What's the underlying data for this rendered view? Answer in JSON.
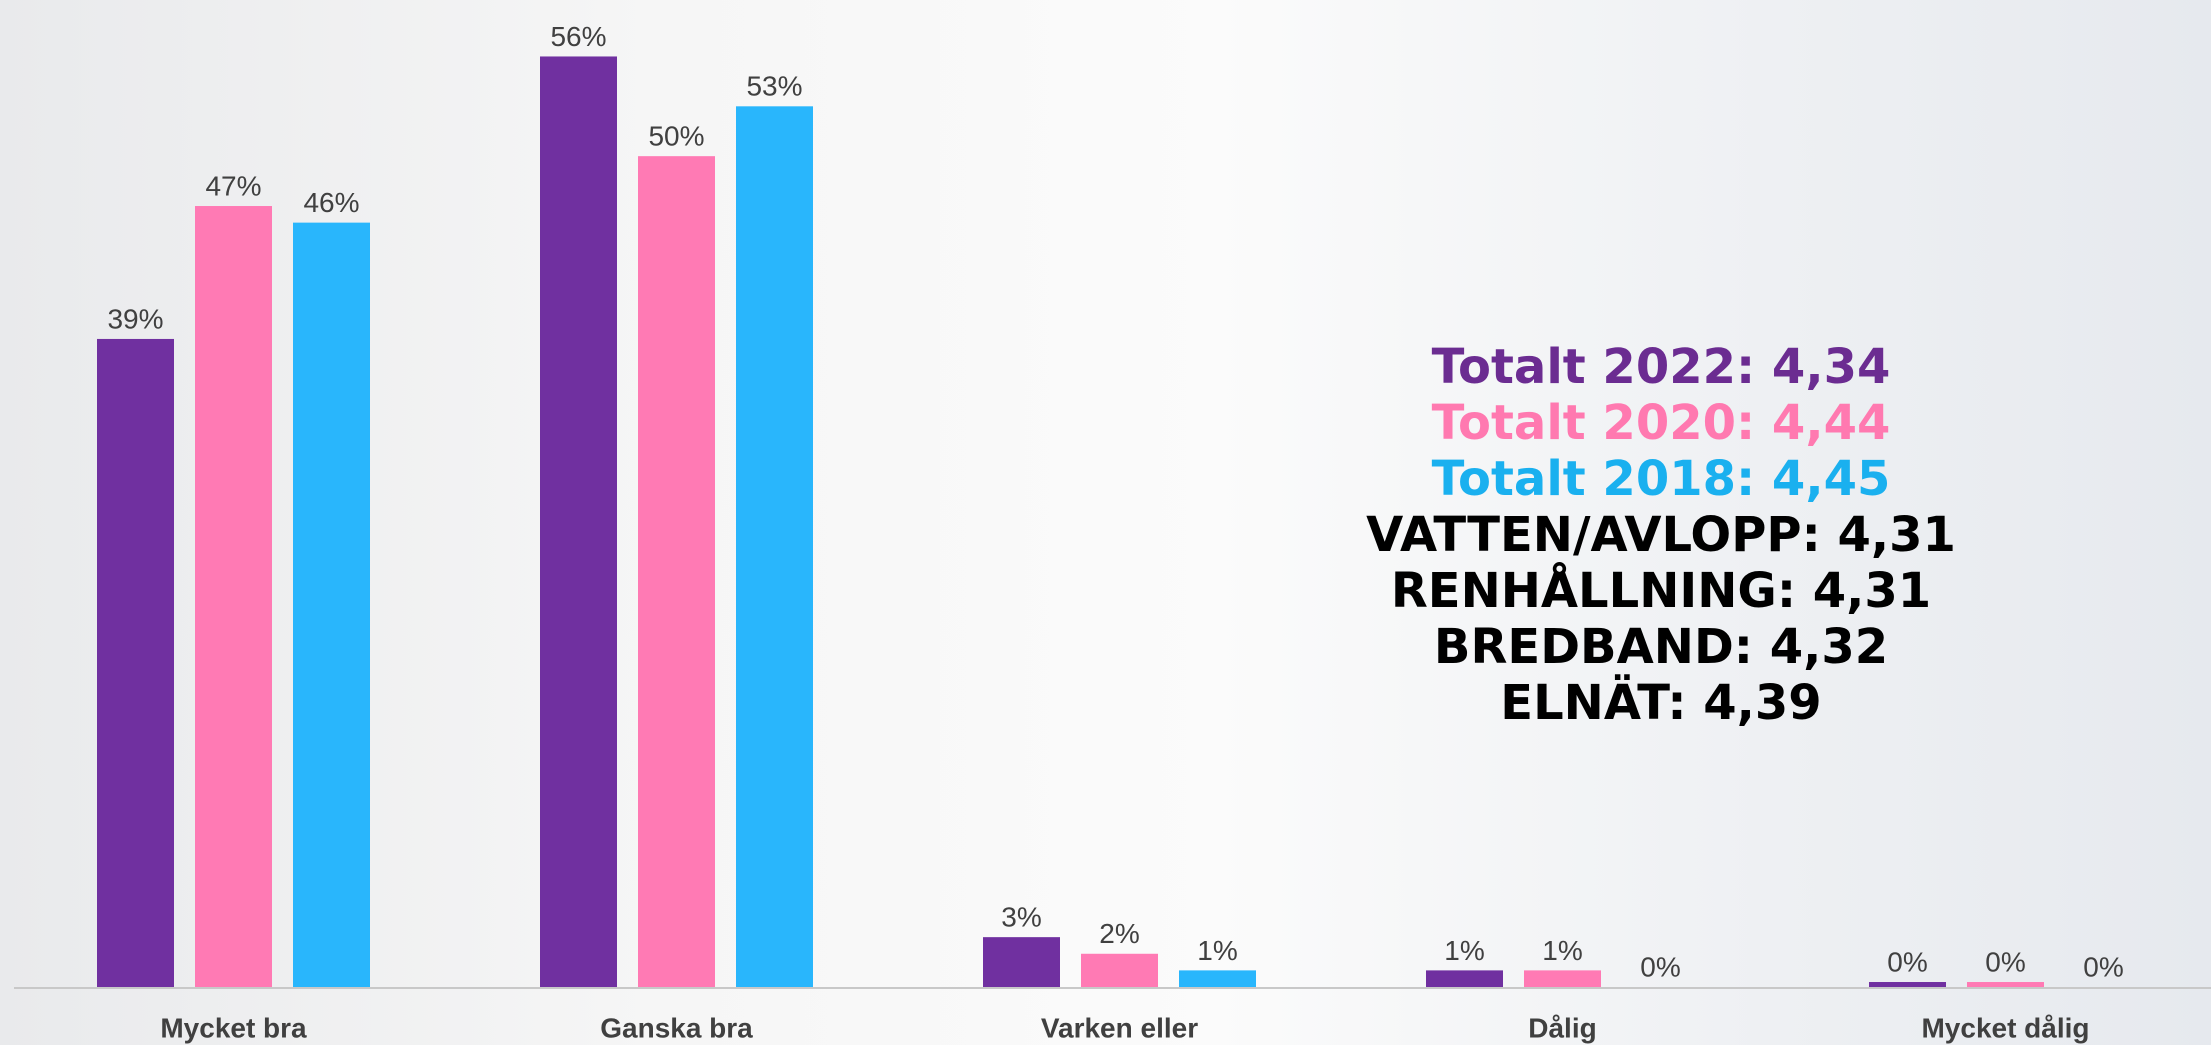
{
  "chart_data": {
    "type": "bar",
    "categories": [
      "Mycket bra",
      "Ganska bra",
      "Varken eller",
      "Dålig",
      "Mycket dålig"
    ],
    "series": [
      {
        "color": "#7030a0",
        "values": [
          39,
          56,
          3,
          1,
          0.3
        ],
        "value_labels": [
          "39%",
          "56%",
          "3%",
          "1%",
          "0%"
        ]
      },
      {
        "color": "#ff7ab4",
        "values": [
          47,
          50,
          2,
          1,
          0.3
        ],
        "value_labels": [
          "47%",
          "50%",
          "2%",
          "1%",
          "0%"
        ]
      },
      {
        "color": "#29b6fc",
        "values": [
          46,
          53,
          1,
          0,
          0
        ],
        "value_labels": [
          "46%",
          "53%",
          "1%",
          "0%",
          "0%"
        ]
      }
    ],
    "ylim": [
      0,
      60
    ],
    "annotations": [
      {
        "text": "Totalt 2022: 4,34",
        "color": "#6b2c91"
      },
      {
        "text": "Totalt 2020: 4,44",
        "color": "#ff79b0"
      },
      {
        "text": "Totalt 2018: 4,45",
        "color": "#1ab0ef"
      },
      {
        "text": "VATTEN/AVLOPP: 4,31",
        "color": "#000000"
      },
      {
        "text": "RENHÅLLNING: 4,31",
        "color": "#000000"
      },
      {
        "text": "BREDBAND: 4,32",
        "color": "#000000"
      },
      {
        "text": "ELNÄT: 4,39",
        "color": "#000000"
      }
    ]
  }
}
